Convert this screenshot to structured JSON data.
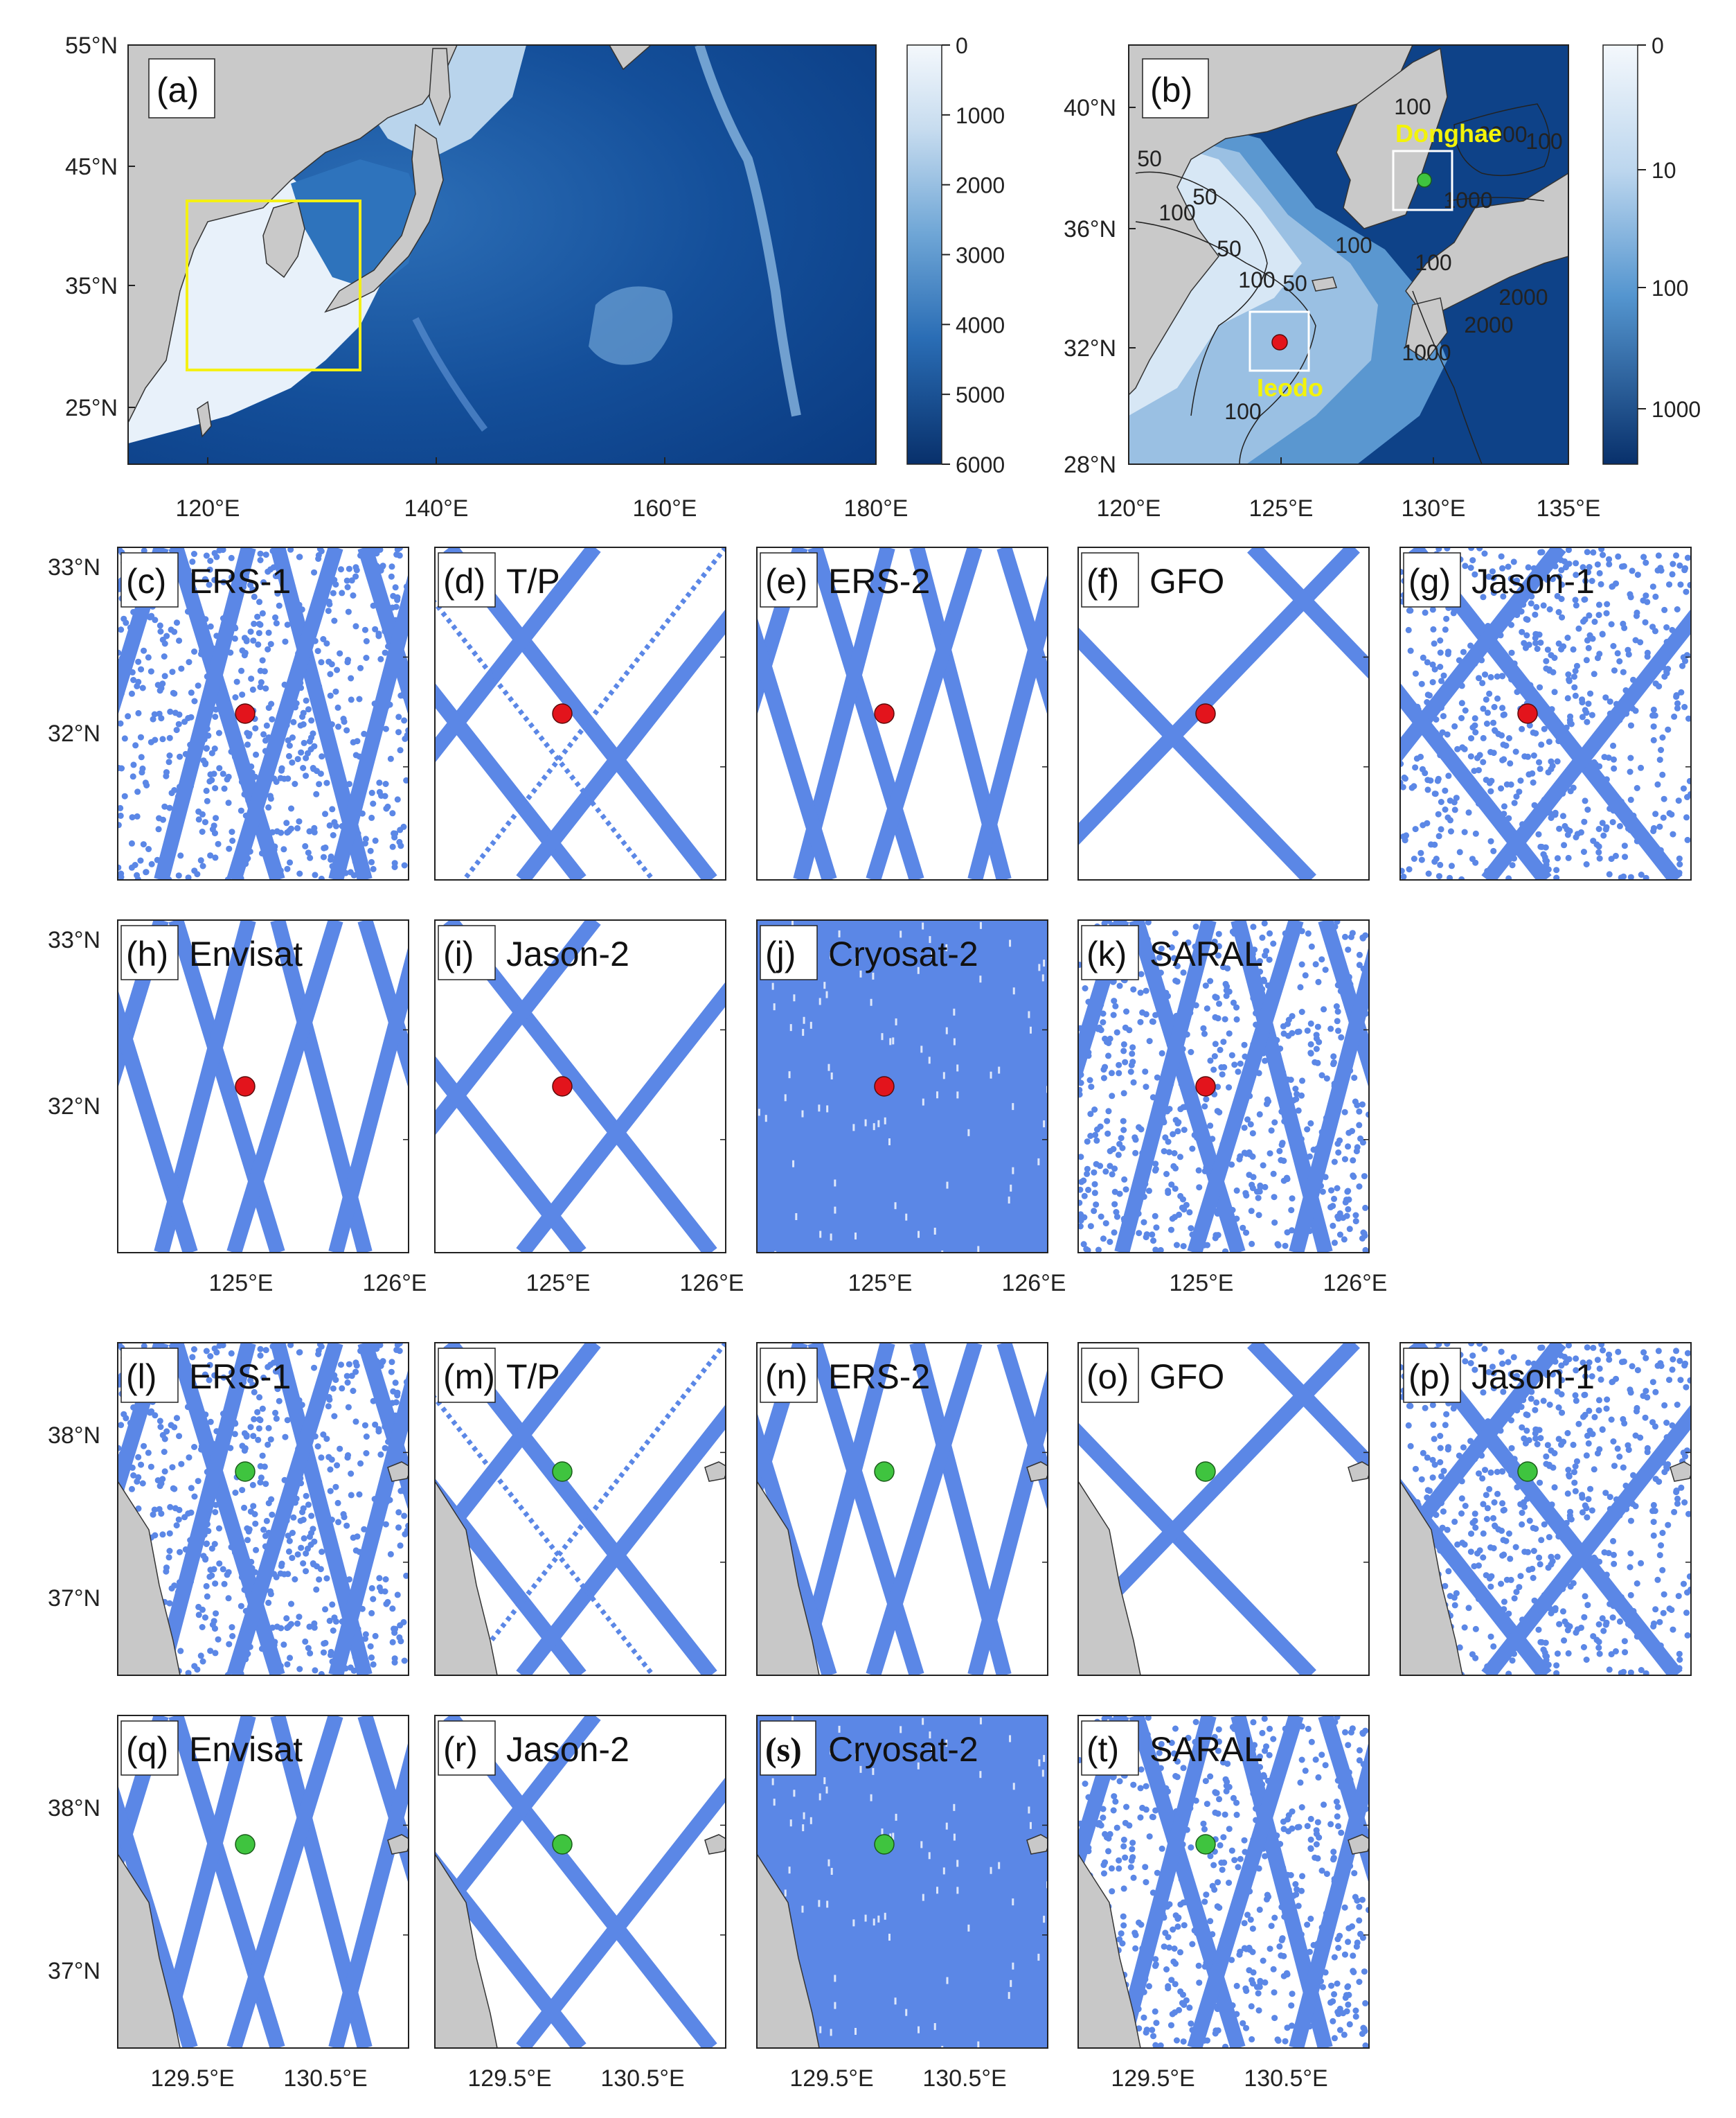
{
  "map_a": {
    "label": "(a)",
    "lon_ticks": [
      "120°E",
      "140°E",
      "160°E",
      "180°E"
    ],
    "lat_ticks": [
      "55°N",
      "45°N",
      "35°N",
      "25°N"
    ],
    "colorbar": {
      "ticks": [
        "0",
        "1000",
        "2000",
        "3000",
        "4000",
        "5000",
        "6000"
      ]
    }
  },
  "map_b": {
    "label": "(b)",
    "lon_ticks": [
      "120°E",
      "125°E",
      "130°E",
      "135°E"
    ],
    "lat_ticks": [
      "40°N",
      "36°N",
      "32°N",
      "28°N"
    ],
    "colorbar": {
      "ticks": [
        "0",
        "10",
        "100",
        "1000"
      ]
    },
    "sites": {
      "donghae": "Donghae",
      "ieodo": "Ieodo"
    },
    "contour_labels": [
      "50",
      "100",
      "50",
      "100",
      "100",
      "1000",
      "2000",
      "100",
      "1000",
      "2000",
      "100",
      "2000",
      "50",
      "100",
      "100",
      "50"
    ]
  },
  "ieodo_panels": [
    {
      "label": "(c)",
      "satellite": "ERS-1"
    },
    {
      "label": "(d)",
      "satellite": "T/P"
    },
    {
      "label": "(e)",
      "satellite": "ERS-2"
    },
    {
      "label": "(f)",
      "satellite": "GFO"
    },
    {
      "label": "(g)",
      "satellite": "Jason-1"
    },
    {
      "label": "(h)",
      "satellite": "Envisat"
    },
    {
      "label": "(i)",
      "satellite": "Jason-2"
    },
    {
      "label": "(j)",
      "satellite": "Cryosat-2"
    },
    {
      "label": "(k)",
      "satellite": "SARAL"
    }
  ],
  "donghae_panels": [
    {
      "label": "(l)",
      "satellite": "ERS-1"
    },
    {
      "label": "(m)",
      "satellite": "T/P"
    },
    {
      "label": "(n)",
      "satellite": "ERS-2"
    },
    {
      "label": "(o)",
      "satellite": "GFO"
    },
    {
      "label": "(p)",
      "satellite": "Jason-1"
    },
    {
      "label": "(q)",
      "satellite": "Envisat"
    },
    {
      "label": "(r)",
      "satellite": "Jason-2"
    },
    {
      "label": "(s)",
      "satellite": "Cryosat-2"
    },
    {
      "label": "(t)",
      "satellite": "SARAL"
    }
  ],
  "ieodo_axes": {
    "lat_ticks": [
      "33°N",
      "32°N"
    ],
    "lon_ticks": [
      "125°E",
      "126°E"
    ]
  },
  "donghae_axes": {
    "lat_ticks": [
      "38°N",
      "37°N"
    ],
    "lon_ticks": [
      "129.5°E",
      "130.5°E"
    ]
  },
  "colors": {
    "track": "#5b87e6",
    "ieodo_marker": "#e3141c",
    "donghae_marker": "#3fc43f",
    "land": "#c8c8c8",
    "highlight_box": "#f4f014",
    "deep_ocean": "#0a3f86",
    "shallow_ocean": "#e9f2fb"
  }
}
